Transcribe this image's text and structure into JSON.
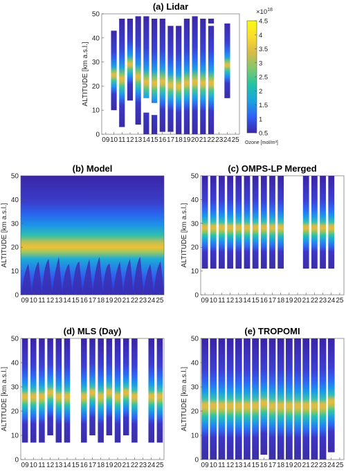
{
  "chart_data": [
    {
      "id": "a",
      "type": "heatmap",
      "title": "(a) Lidar",
      "ylabel": "ALTITUDE [km a.s.l.]",
      "xlabel": "",
      "x": [
        "09",
        "10",
        "11",
        "12",
        "13",
        "14",
        "15",
        "16",
        "17",
        "18",
        "19",
        "20",
        "21",
        "22",
        "23",
        "24",
        "25"
      ],
      "yticks": [
        0,
        10,
        20,
        30,
        40,
        50
      ],
      "ylim": [
        0,
        50
      ],
      "columns": [
        {
          "day": "10",
          "bottom": 10,
          "top": 43
        },
        {
          "day": "11",
          "bottom": 3,
          "top": 48
        },
        {
          "day": "12",
          "bottom": 14,
          "top": 48
        },
        {
          "day": "13",
          "bottom": 4,
          "top": 49
        },
        {
          "day": "14",
          "bottom": 0,
          "top": 49,
          "gap": [
            9,
            15
          ]
        },
        {
          "day": "15",
          "bottom": 0,
          "top": 48,
          "gap": [
            8,
            13
          ]
        },
        {
          "day": "16",
          "bottom": 1,
          "top": 48
        },
        {
          "day": "17",
          "bottom": 1,
          "top": 45
        },
        {
          "day": "18",
          "bottom": 0,
          "top": 45
        },
        {
          "day": "19",
          "bottom": 0,
          "top": 48
        },
        {
          "day": "20",
          "bottom": 0,
          "top": 49
        },
        {
          "day": "21",
          "bottom": 0,
          "top": 48
        },
        {
          "day": "22",
          "bottom": 0,
          "top": 48,
          "gap": [
            45,
            46
          ]
        },
        {
          "day": "24",
          "bottom": 15,
          "top": 46
        }
      ]
    },
    {
      "id": "b",
      "type": "heatmap",
      "title": "(b) Model",
      "ylabel": "ALTITUDE [km a.s.l.]",
      "xlabel": "",
      "x": [
        "09",
        "10",
        "11",
        "12",
        "13",
        "14",
        "15",
        "16",
        "17",
        "18",
        "19",
        "20",
        "21",
        "22",
        "23",
        "24",
        "25"
      ],
      "yticks": [
        0,
        10,
        20,
        30,
        40,
        50
      ],
      "ylim": [
        0,
        50
      ],
      "columns": "continuous"
    },
    {
      "id": "c",
      "type": "heatmap",
      "title": "(c) OMPS-LP Merged",
      "ylabel": "ALTITUDE [km a.s.l.]",
      "xlabel": "",
      "x": [
        "09",
        "10",
        "11",
        "12",
        "13",
        "14",
        "15",
        "16",
        "17",
        "18",
        "19",
        "20",
        "21",
        "22",
        "23",
        "24",
        "25"
      ],
      "yticks": [
        0,
        10,
        20,
        30,
        40,
        50
      ],
      "ylim": [
        0,
        50
      ],
      "columns": [
        {
          "day": "09",
          "bottom": 11,
          "top": 50
        },
        {
          "day": "10",
          "bottom": 11,
          "top": 50
        },
        {
          "day": "11",
          "bottom": 11,
          "top": 50
        },
        {
          "day": "12",
          "bottom": 11,
          "top": 50
        },
        {
          "day": "13",
          "bottom": 11,
          "top": 50
        },
        {
          "day": "14",
          "bottom": 11,
          "top": 50
        },
        {
          "day": "15",
          "bottom": 11,
          "top": 50
        },
        {
          "day": "16",
          "bottom": 11,
          "top": 50
        },
        {
          "day": "17",
          "bottom": 11,
          "top": 50
        },
        {
          "day": "18",
          "bottom": 11,
          "top": 50
        },
        {
          "day": "21",
          "bottom": 11,
          "top": 50
        },
        {
          "day": "22",
          "bottom": 11,
          "top": 50
        },
        {
          "day": "23",
          "bottom": 11,
          "top": 50
        },
        {
          "day": "24",
          "bottom": 11,
          "top": 50
        }
      ]
    },
    {
      "id": "d",
      "type": "heatmap",
      "title": "(d) MLS (Day)",
      "ylabel": "ALTITUDE [km a.s.l.]",
      "xlabel": "",
      "x": [
        "09",
        "10",
        "11",
        "12",
        "13",
        "14",
        "15",
        "16",
        "17",
        "18",
        "19",
        "20",
        "21",
        "22",
        "23",
        "24",
        "25"
      ],
      "yticks": [
        0,
        10,
        20,
        30,
        40,
        50
      ],
      "ylim": [
        0,
        50
      ],
      "columns": [
        {
          "day": "09",
          "bottom": 7,
          "top": 50
        },
        {
          "day": "10",
          "bottom": 7,
          "top": 50
        },
        {
          "day": "11",
          "bottom": 7,
          "top": 50
        },
        {
          "day": "12",
          "bottom": 10,
          "top": 50
        },
        {
          "day": "13",
          "bottom": 7,
          "top": 50
        },
        {
          "day": "14",
          "bottom": 7,
          "top": 50
        },
        {
          "day": "16",
          "bottom": 7,
          "top": 50
        },
        {
          "day": "17",
          "bottom": 10,
          "top": 50
        },
        {
          "day": "18",
          "bottom": 7,
          "top": 50
        },
        {
          "day": "19",
          "bottom": 10,
          "top": 50
        },
        {
          "day": "20",
          "bottom": 7,
          "top": 50
        },
        {
          "day": "21",
          "bottom": 10,
          "top": 50
        },
        {
          "day": "22",
          "bottom": 7,
          "top": 50
        },
        {
          "day": "24",
          "bottom": 7,
          "top": 50
        },
        {
          "day": "25",
          "bottom": 7,
          "top": 50
        }
      ]
    },
    {
      "id": "e",
      "type": "heatmap",
      "title": "(e) TROPOMI",
      "ylabel": "ALTITUDE [km a.s.l.]",
      "xlabel": "",
      "x": [
        "09",
        "10",
        "11",
        "12",
        "13",
        "14",
        "15",
        "16",
        "17",
        "18",
        "19",
        "20",
        "21",
        "22",
        "23",
        "24",
        "25"
      ],
      "yticks": [
        0,
        10,
        20,
        30,
        40,
        50
      ],
      "ylim": [
        0,
        50
      ],
      "columns": [
        {
          "day": "09",
          "bottom": 0,
          "top": 50
        },
        {
          "day": "10",
          "bottom": 0,
          "top": 50
        },
        {
          "day": "11",
          "bottom": 0,
          "top": 50
        },
        {
          "day": "12",
          "bottom": 0,
          "top": 50
        },
        {
          "day": "13",
          "bottom": 0,
          "top": 50
        },
        {
          "day": "14",
          "bottom": 0,
          "top": 50
        },
        {
          "day": "15",
          "bottom": 0,
          "top": 50
        },
        {
          "day": "16",
          "bottom": 2,
          "top": 50
        },
        {
          "day": "17",
          "bottom": 0,
          "top": 50
        },
        {
          "day": "18",
          "bottom": 0,
          "top": 50
        },
        {
          "day": "19",
          "bottom": 0,
          "top": 50
        },
        {
          "day": "20",
          "bottom": 0,
          "top": 50
        },
        {
          "day": "21",
          "bottom": 0,
          "top": 50
        },
        {
          "day": "22",
          "bottom": 0,
          "top": 50
        },
        {
          "day": "23",
          "bottom": 0,
          "top": 50
        },
        {
          "day": "24",
          "bottom": 3,
          "top": 50
        }
      ]
    }
  ],
  "colorbar": {
    "label": "Ozone [mol/m³]",
    "exponent_base": "×10",
    "exponent": "18",
    "ticks": [
      "0.5",
      "1",
      "1.5",
      "2",
      "2.5",
      "3",
      "3.5",
      "4",
      "4.5"
    ],
    "range": [
      0.5,
      4.5
    ],
    "colors": [
      "#3d26a8",
      "#2e5ff7",
      "#1aa3e0",
      "#20c3a6",
      "#7fc96b",
      "#d6ba48",
      "#fbdc2c",
      "#f9fb0e"
    ]
  }
}
